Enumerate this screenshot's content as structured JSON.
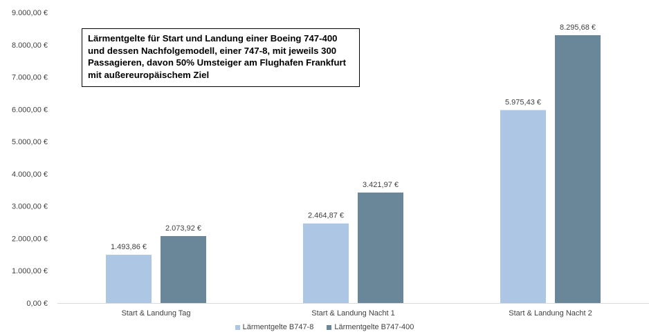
{
  "chart_data": {
    "type": "bar",
    "title": "Lärmentgelte für Start und Landung einer Boeing 747-400 und dessen Nachfolgemodell, einer 747-8, mit jeweils 300 Passagieren, davon 50% Umsteiger am Flughafen Frankfurt mit außereuropäischem Ziel",
    "categories": [
      "Start & Landung Tag",
      "Start & Landung Nacht 1",
      "Start & Landung Nacht 2"
    ],
    "series": [
      {
        "name": "Lärmentgelte B747-8",
        "values": [
          1493.86,
          2464.87,
          5975.43
        ],
        "labels": [
          "1.493,86 €",
          "2.464,87 €",
          "5.975,43 €"
        ],
        "color": "#adc6e3"
      },
      {
        "name": "Lärmentgelte B747-400",
        "values": [
          2073.92,
          3421.97,
          8295.68
        ],
        "labels": [
          "2.073,92 €",
          "3.421,97 €",
          "8.295,68 €"
        ],
        "color": "#6a8699"
      }
    ],
    "ylim": [
      0,
      9000
    ],
    "yticks": [
      0,
      1000,
      2000,
      3000,
      4000,
      5000,
      6000,
      7000,
      8000,
      9000
    ],
    "ytick_labels": [
      "0,00 €",
      "1.000,00 €",
      "2.000,00 €",
      "3.000,00 €",
      "4.000,00 €",
      "5.000,00 €",
      "6.000,00 €",
      "7.000,00 €",
      "8.000,00 €",
      "9.000,00 €"
    ],
    "xlabel": "",
    "ylabel": "",
    "grid": false,
    "legend": "bottom"
  }
}
